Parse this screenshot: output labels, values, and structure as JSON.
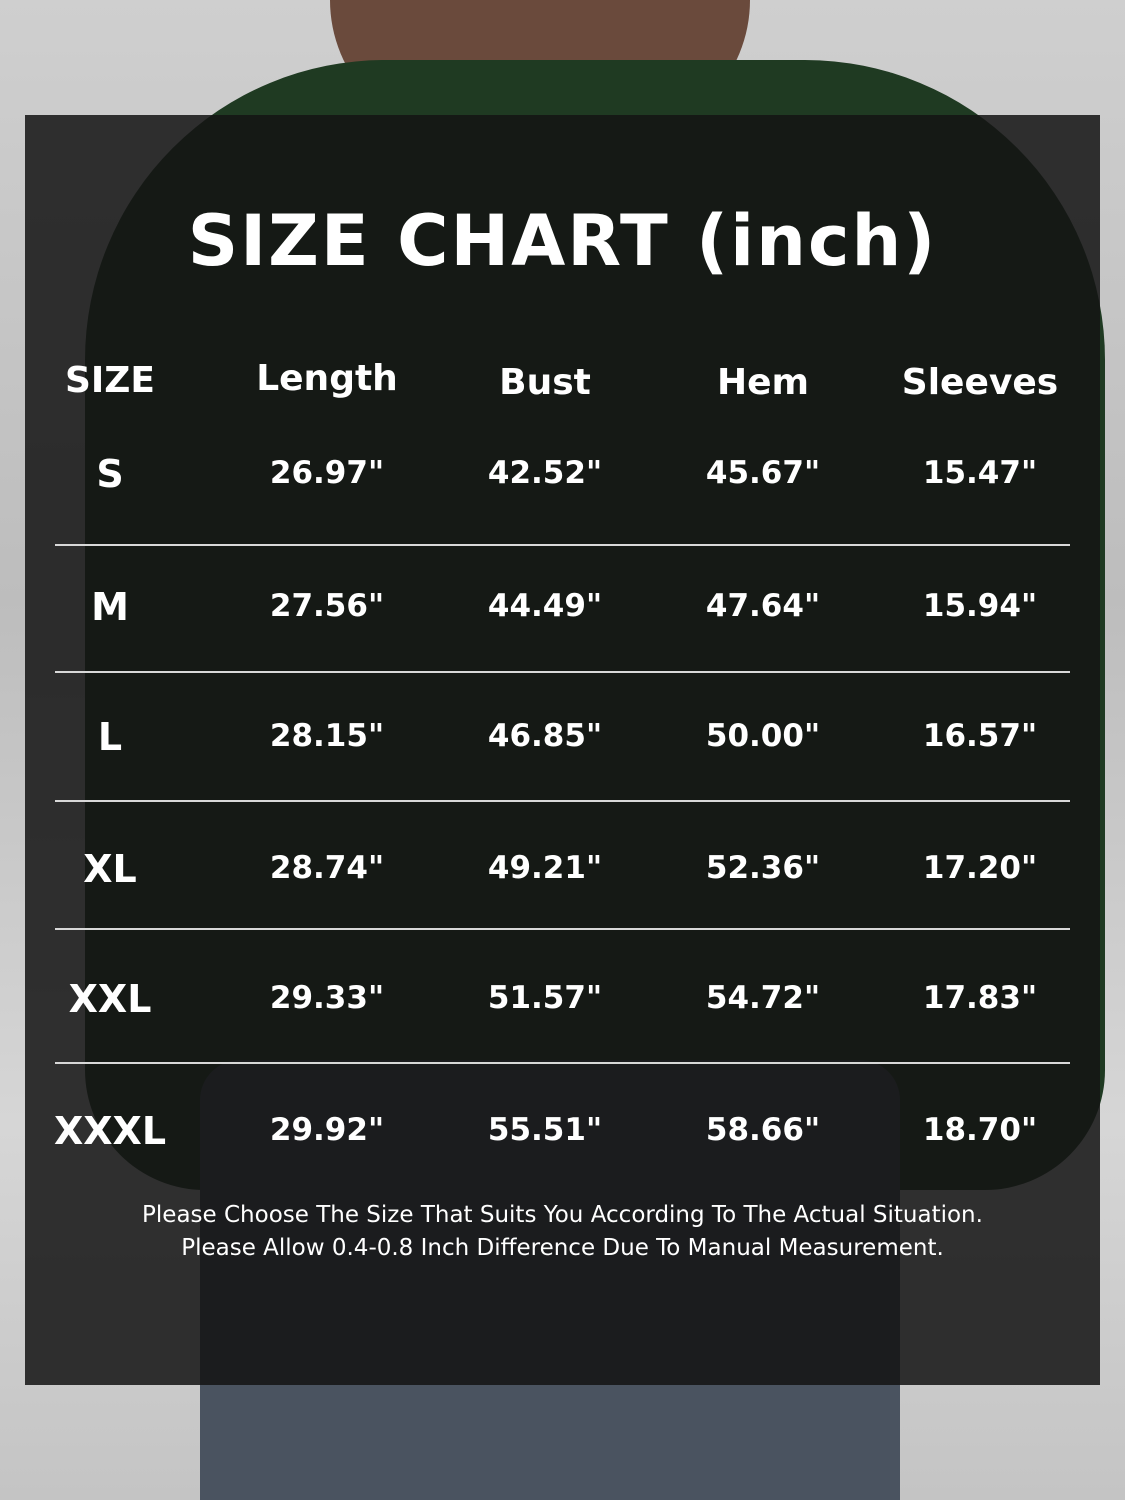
{
  "title": "SIZE CHART (inch)",
  "table": {
    "headers": [
      "SIZE",
      "Length",
      "Bust",
      "Hem",
      "Sleeves"
    ],
    "rows": [
      [
        "S",
        "26.97\"",
        "42.52\"",
        "45.67\"",
        "15.47\""
      ],
      [
        "M",
        "27.56\"",
        "44.49\"",
        "47.64\"",
        "15.94\""
      ],
      [
        "L",
        "28.15\"",
        "46.85\"",
        "50.00\"",
        "16.57\""
      ],
      [
        "XL",
        "28.74\"",
        "49.21\"",
        "52.36\"",
        "17.20\""
      ],
      [
        "XXL",
        "29.33\"",
        "51.57\"",
        "54.72\"",
        "17.83\""
      ],
      [
        "XXXL",
        "29.92\"",
        "55.51\"",
        "58.66\"",
        "18.70\""
      ]
    ]
  },
  "notes": [
    "Please Choose The Size That Suits You According To The Actual Situation.",
    "Please Allow 0.4-0.8 Inch Difference Due To Manual Measurement."
  ],
  "colors": {
    "shirt": "#1f3a22",
    "panel": "#141414",
    "text": "#ffffff"
  }
}
